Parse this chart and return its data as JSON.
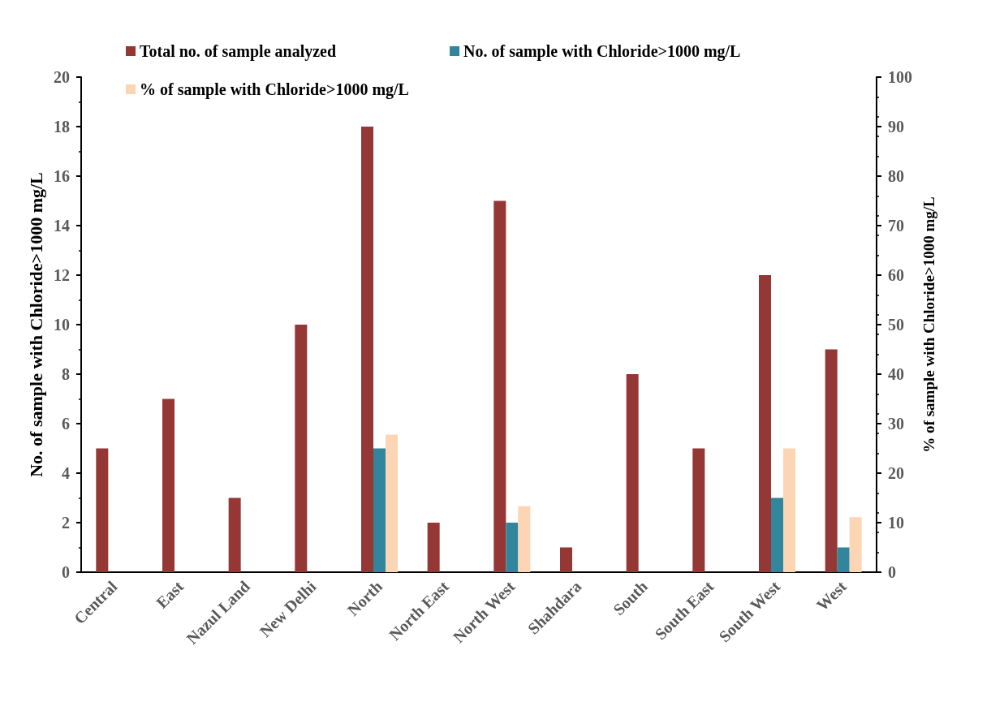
{
  "chart_data": {
    "type": "bar",
    "categories": [
      "Central",
      "East",
      "Nazul Land",
      "New Delhi",
      "North",
      "North East",
      "North West",
      "Shahdara",
      "South",
      "South East",
      "South West",
      "West"
    ],
    "series": [
      {
        "name": "Total no. of sample analyzed",
        "color": "#953735",
        "values": [
          5,
          7,
          3,
          10,
          18,
          2,
          15,
          1,
          8,
          5,
          12,
          9
        ]
      },
      {
        "name": "No. of sample with Chloride>1000 mg/L",
        "color": "#31859c",
        "values": [
          0,
          0,
          0,
          0,
          5,
          0,
          2,
          0,
          0,
          0,
          3,
          1
        ]
      },
      {
        "name": "% of sample with Chloride>1000 mg/L",
        "color": "#fcd5b5",
        "axis": "y2",
        "values": [
          0,
          0,
          0,
          0,
          27.8,
          0,
          13.3,
          0,
          0,
          0,
          25,
          11.1
        ]
      }
    ],
    "ylabel": "No. of sample with Chloride>1000 mg/L",
    "y2label": "% of sample with Chloride>1000 mg/L",
    "ylim": [
      0,
      20
    ],
    "yticks": [
      0,
      2,
      4,
      6,
      8,
      10,
      12,
      14,
      16,
      18,
      20
    ],
    "y2lim": [
      0,
      100
    ],
    "y2ticks": [
      0,
      10,
      20,
      30,
      40,
      50,
      60,
      70,
      80,
      90,
      100
    ],
    "grid": false,
    "legend": "top"
  }
}
